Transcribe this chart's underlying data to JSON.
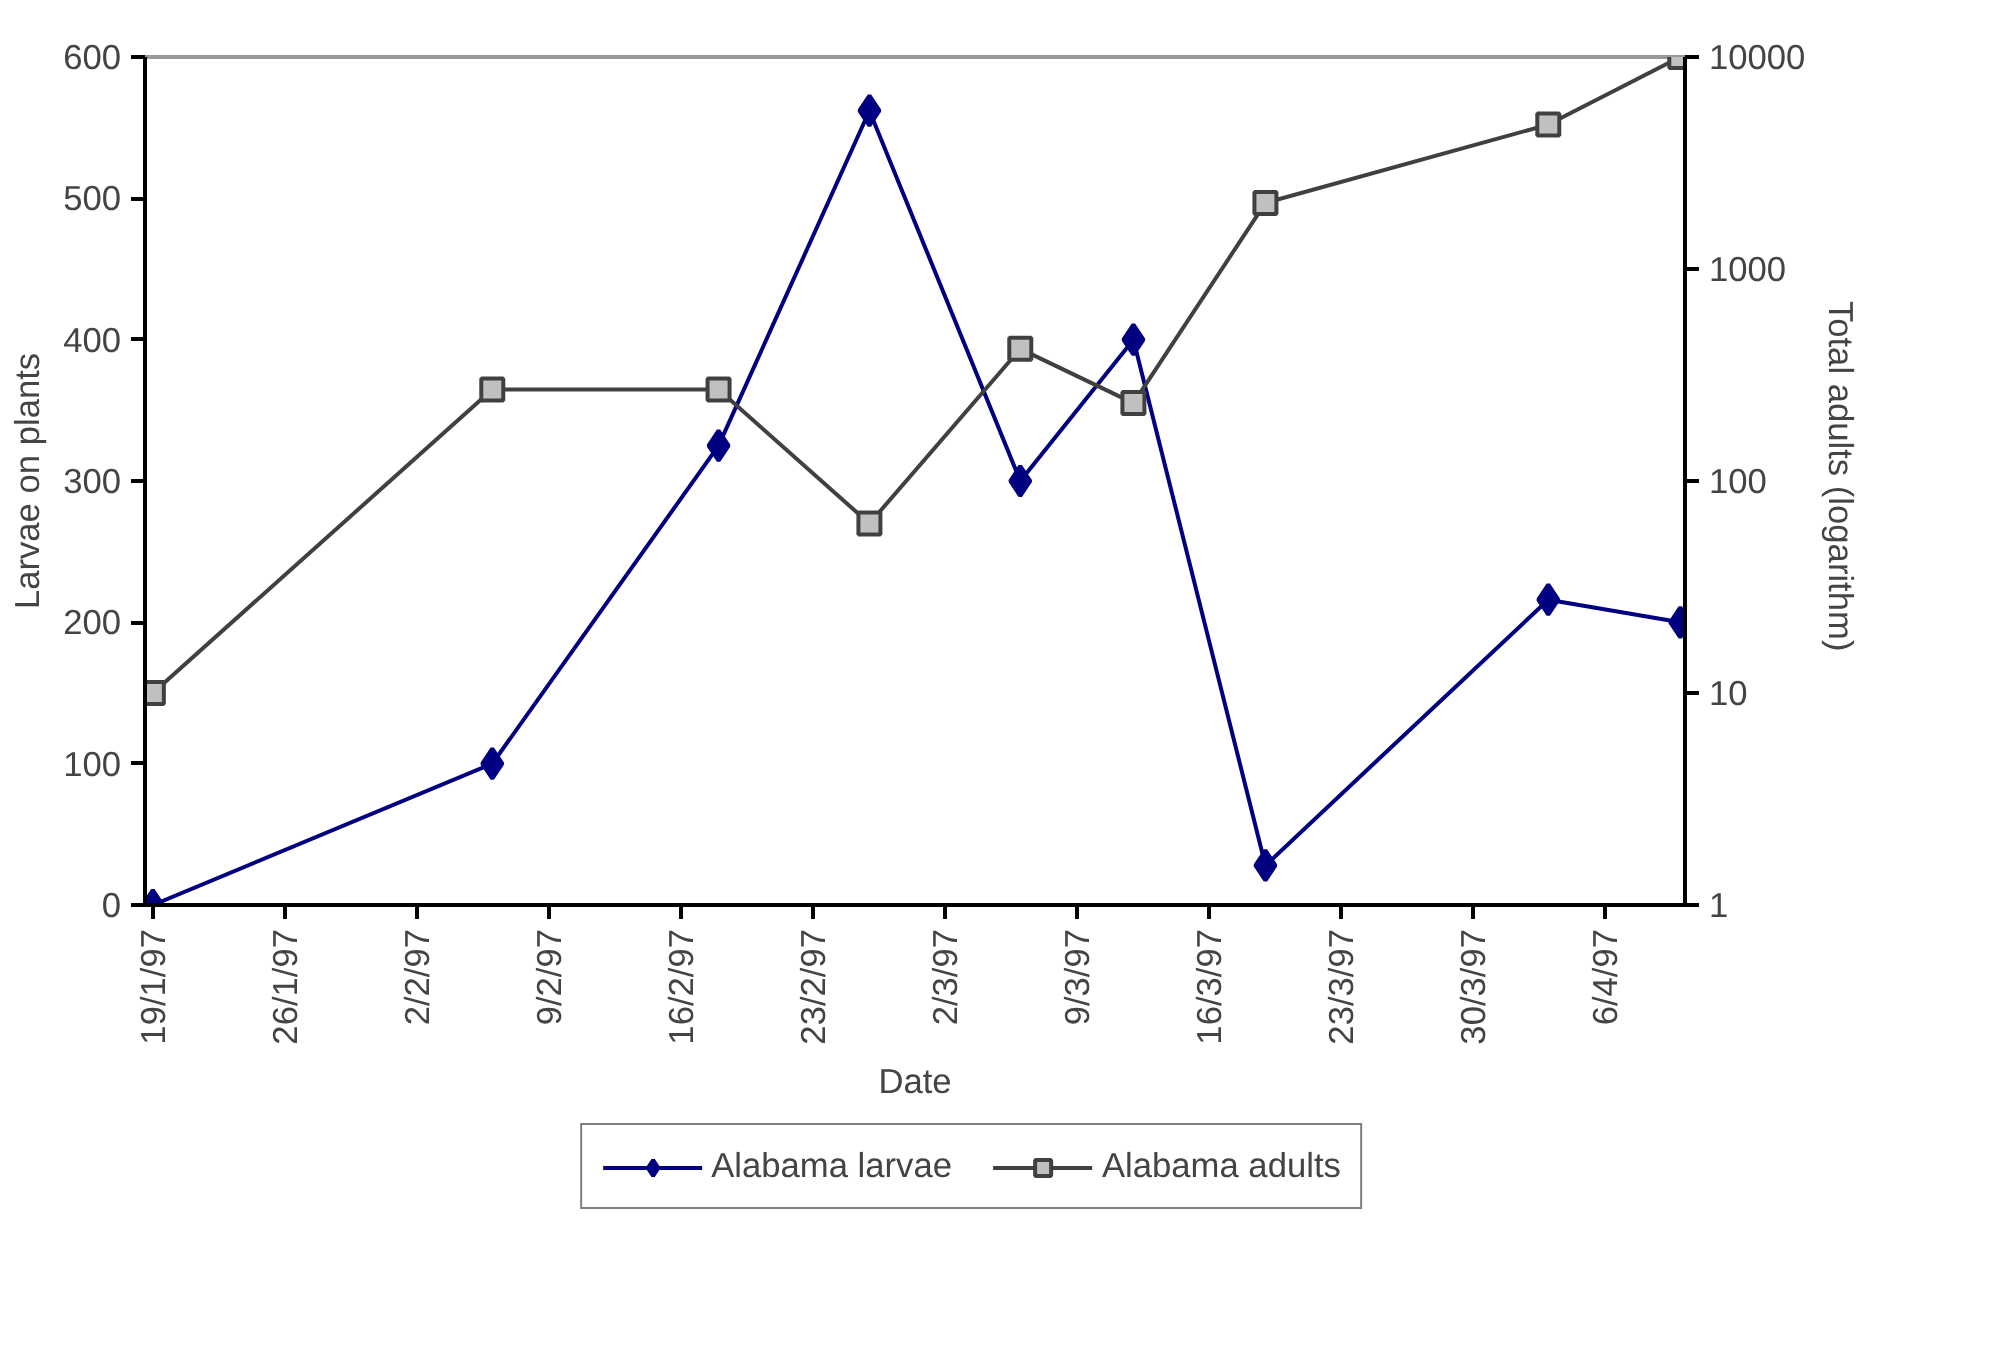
{
  "chart_data": {
    "type": "line",
    "xlabel": "Date",
    "ylabel": "Larvae on plants",
    "y2label": "Total adults  (logarithm)",
    "x": [
      "1997-01-19",
      "1997-02-06",
      "1997-02-18",
      "1997-02-26",
      "1997-03-06",
      "1997-03-12",
      "1997-03-19",
      "1997-04-03",
      "1997-04-10"
    ],
    "series": [
      {
        "name": "Alabama larvae",
        "color": "#000080",
        "marker": "diamond",
        "values": [
          0,
          100,
          325,
          562,
          300,
          400,
          28,
          216,
          200
        ]
      },
      {
        "name": "Alabama adults",
        "color": "#404040",
        "marker": "square",
        "axis": "y2",
        "values": [
          10,
          270,
          270,
          63,
          420,
          233,
          2050,
          4800,
          10000
        ]
      }
    ],
    "xlim": [
      "1997-01-18T14:00",
      "1997-04-10T06:00"
    ],
    "xticks": [
      {
        "value": "1997-01-19",
        "label": "19/1/97"
      },
      {
        "value": "1997-01-26",
        "label": "26/1/97"
      },
      {
        "value": "1997-02-02",
        "label": "2/2/97"
      },
      {
        "value": "1997-02-09",
        "label": "9/2/97"
      },
      {
        "value": "1997-02-16",
        "label": "16/2/97"
      },
      {
        "value": "1997-02-23",
        "label": "23/2/97"
      },
      {
        "value": "1997-03-02",
        "label": "2/3/97"
      },
      {
        "value": "1997-03-09",
        "label": "9/3/97"
      },
      {
        "value": "1997-03-16",
        "label": "16/3/97"
      },
      {
        "value": "1997-03-23",
        "label": "23/3/97"
      },
      {
        "value": "1997-03-30",
        "label": "30/3/97"
      },
      {
        "value": "1997-04-06",
        "label": "6/4/97"
      }
    ],
    "ylim": [
      0,
      600
    ],
    "yticks": [
      0,
      100,
      200,
      300,
      400,
      500,
      600
    ],
    "y2lim": [
      1,
      10000
    ],
    "y2ticks": [
      1,
      10,
      100,
      1000,
      10000
    ],
    "log": "y2",
    "grid": false,
    "legend": "bottom"
  }
}
